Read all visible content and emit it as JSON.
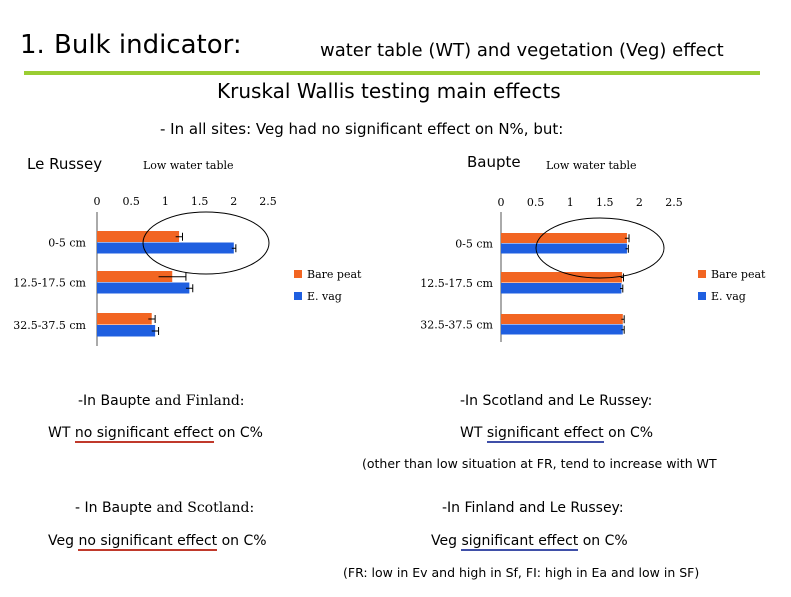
{
  "title": {
    "number": "1.",
    "main": "Bulk indicator:",
    "sub": "water table (WT) and vegetation (Veg) effect"
  },
  "subtitle": "Kruskal Wallis testing main effects",
  "intro": "- In all sites: Veg had no significant effect on N%, but:",
  "colors": {
    "bare_peat": "#f26522",
    "e_vag": "#1f5fe0",
    "accent": "#9acd32",
    "red_line": "#c0392b",
    "blue_line": "#3f4fa8"
  },
  "chart_data": [
    {
      "type": "bar",
      "orientation": "horizontal",
      "site": "Le Russey",
      "title": "Low water table",
      "categories": [
        "0-5 cm",
        "12.5-17.5 cm",
        "32.5-37.5 cm"
      ],
      "ticks": [
        "0",
        "0.5",
        "1",
        "1.5",
        "2",
        "2.5"
      ],
      "xlim": [
        0,
        2.5
      ],
      "series": [
        {
          "name": "Bare peat",
          "values": [
            1.2,
            1.1,
            0.8
          ],
          "errors": [
            0.05,
            0.2,
            0.05
          ]
        },
        {
          "name": "E. vag",
          "values": [
            2.0,
            1.35,
            0.85
          ],
          "errors": [
            0.03,
            0.05,
            0.05
          ]
        }
      ]
    },
    {
      "type": "bar",
      "orientation": "horizontal",
      "site": "Baupte",
      "title": "Low water table",
      "categories": [
        "0-5 cm",
        "12.5-17.5 cm",
        "32.5-37.5 cm"
      ],
      "ticks": [
        "0",
        "0.5",
        "1",
        "1.5",
        "2",
        "2.5"
      ],
      "xlim": [
        0,
        2.5
      ],
      "series": [
        {
          "name": "Bare peat",
          "values": [
            1.82,
            1.75,
            1.76
          ],
          "errors": [
            0.03,
            0.02,
            0.02
          ]
        },
        {
          "name": "E. vag",
          "values": [
            1.82,
            1.74,
            1.76
          ],
          "errors": [
            0.02,
            0.02,
            0.02
          ]
        }
      ]
    }
  ],
  "notes": {
    "n1": {
      "a": "-In Baupte",
      "b": " and Finland:"
    },
    "n2": {
      "a": "WT ",
      "b": "no significant effect",
      "c": " on C%"
    },
    "n3": "-In Scotland and Le Russey:",
    "n4": {
      "a": "WT ",
      "b": "significant effect",
      "c": " on C%"
    },
    "n5": "(other than low situation at FR, tend to increase with WT",
    "n6": {
      "a": "- In Baupte",
      "b": " and Scotland:"
    },
    "n7": {
      "a": "Veg ",
      "b": "no significant effect",
      "c": " on C%"
    },
    "n8": "-In Finland and Le Russey:",
    "n9": {
      "a": "Veg ",
      "b": "significant effect",
      "c": " on C%"
    },
    "n10": "(FR: low in Ev and high in Sf, FI: high in Ea and low in SF)"
  }
}
